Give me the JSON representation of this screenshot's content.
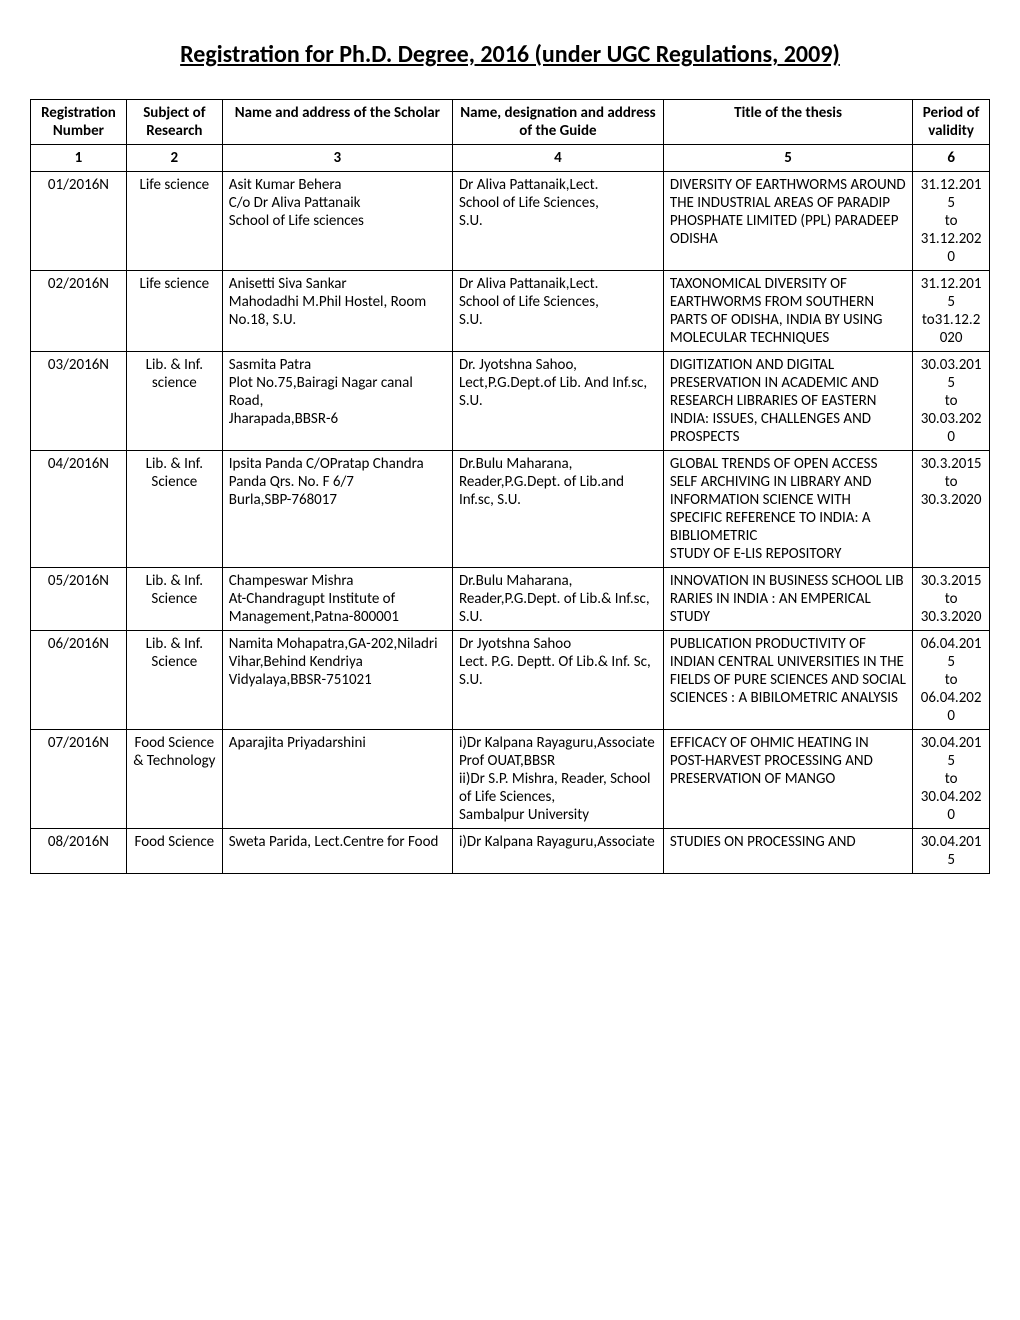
{
  "title": "Registration for Ph.D. Degree, 2016 (under UGC Regulations, 2009)",
  "columns": [
    "Registration Number",
    "Subject of Research",
    "Name and address of the Scholar",
    "Name, designation and address of the Guide",
    "Title of the thesis",
    "Period of validity"
  ],
  "column_numbers": [
    "1",
    "2",
    "3",
    "4",
    "5",
    "6"
  ],
  "rows": [
    {
      "reg": "01/2016N",
      "subject": "Life science",
      "scholar": "Asit Kumar Behera\nC/o Dr Aliva Pattanaik\nSchool of Life sciences",
      "guide": "Dr Aliva Pattanaik,Lect.\nSchool of Life Sciences,\nS.U.",
      "thesis": "DIVERSITY OF EARTHWORMS AROUND THE INDUSTRIAL AREAS OF PARADIP PHOSPHATE LIMITED (PPL)  PARADEEP ODISHA",
      "validity": "31.12.2015\nto\n31.12.2020"
    },
    {
      "reg": "02/2016N",
      "subject": "Life science",
      "scholar": "Anisetti Siva Sankar\nMahodadhi M.Phil Hostel, Room No.18, S.U.",
      "guide": "Dr Aliva Pattanaik,Lect.\nSchool of Life Sciences,\nS.U.",
      "thesis": "TAXONOMICAL DIVERSITY OF EARTHWORMS FROM SOUTHERN PARTS OF ODISHA, INDIA BY USING MOLECULAR TECHNIQUES",
      "validity": "31.12.2015\nto31.12.2020"
    },
    {
      "reg": "03/2016N",
      "subject": "Lib. & Inf. science",
      "scholar": "Sasmita Patra\nPlot No.75,Bairagi Nagar canal Road,\nJharapada,BBSR-6",
      "guide": "Dr. Jyotshna Sahoo,\nLect,P.G.Dept.of Lib. And Inf.sc,\nS.U.",
      "thesis": "DIGITIZATION AND DIGITAL PRESERVATION IN ACADEMIC AND RESEARCH LIBRARIES OF EASTERN INDIA: ISSUES, CHALLENGES AND PROSPECTS",
      "validity": "30.03.2015\nto\n30.03.2020"
    },
    {
      "reg": "04/2016N",
      "subject": "Lib. & Inf. Science",
      "scholar": "Ipsita Panda  C/OPratap Chandra Panda Qrs. No. F 6/7\nBurla,SBP-768017",
      "guide": "Dr.Bulu Maharana,\nReader,P.G.Dept. of Lib.and Inf.sc, S.U.",
      "thesis": "GLOBAL TRENDS OF OPEN ACCESS SELF ARCHIVING IN LIBRARY AND INFORMATION SCIENCE WITH SPECIFIC REFERENCE TO INDIA: A BIBLIOMETRIC\nSTUDY OF E-LIS REPOSITORY",
      "validity": "30.3.2015\nto\n30.3.2020"
    },
    {
      "reg": "05/2016N",
      "subject": "Lib. & Inf. Science",
      "scholar": "Champeswar Mishra\nAt-Chandragupt Institute of Management,Patna-800001",
      "guide": "Dr.Bulu Maharana,\nReader,P.G.Dept. of Lib.& Inf.sc,\nS.U.",
      "thesis": "INNOVATION IN BUSINESS SCHOOL LIB RARIES IN INDIA : AN EMPERICAL STUDY",
      "validity": "30.3.2015\nto\n30.3.2020"
    },
    {
      "reg": "06/2016N",
      "subject": "Lib. & Inf. Science",
      "scholar": "Namita Mohapatra,GA-202,Niladri Vihar,Behind Kendriya Vidyalaya,BBSR-751021",
      "guide": "Dr Jyotshna Sahoo\nLect. P.G. Deptt. Of Lib.& Inf. Sc,\nS.U.",
      "thesis": "PUBLICATION PRODUCTIVITY OF INDIAN CENTRAL UNIVERSITIES IN THE FIELDS OF PURE SCIENCES AND SOCIAL SCIENCES : A BIBILOMETRIC ANALYSIS",
      "validity": "06.04.2015\nto\n06.04.2020"
    },
    {
      "reg": "07/2016N",
      "subject": "Food Science & Technology",
      "scholar": "Aparajita Priyadarshini",
      "guide": "i)Dr Kalpana Rayaguru,Associate Prof OUAT,BBSR\nii)Dr S.P. Mishra, Reader, School of Life Sciences,\nSambalpur University",
      "thesis": "EFFICACY OF OHMIC HEATING IN POST-HARVEST PROCESSING AND PRESERVATION OF MANGO",
      "validity": "30.04.2015\nto\n30.04.2020"
    },
    {
      "reg": "08/2016N",
      "subject": "Food Science",
      "scholar": "Sweta Parida, Lect.Centre for Food",
      "guide": "i)Dr Kalpana Rayaguru,Associate",
      "thesis": "STUDIES ON PROCESSING AND",
      "validity": "30.04.2015"
    }
  ]
}
